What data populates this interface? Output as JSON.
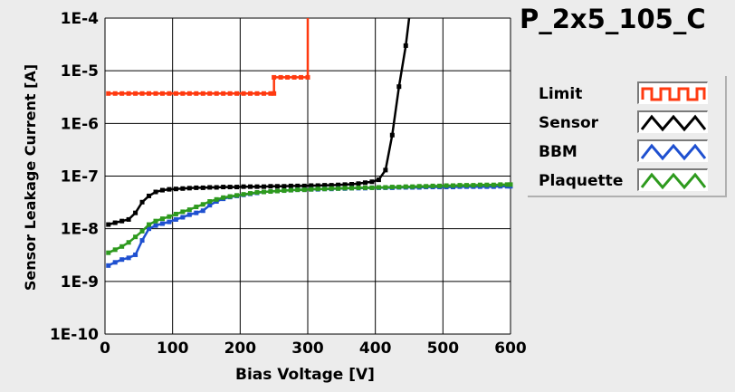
{
  "title": "P_2x5_105_C",
  "chart_data": {
    "type": "line",
    "xlabel": "Bias Voltage [V]",
    "ylabel": "Sensor Leakage Current [A]",
    "xlim": [
      0,
      600
    ],
    "ylim": [
      1e-10,
      0.0001
    ],
    "yscale": "log",
    "grid": true,
    "legend_position": "right",
    "x_ticks": [
      "0",
      "100",
      "200",
      "300",
      "400",
      "500",
      "600"
    ],
    "x_tick_values": [
      0,
      100,
      200,
      300,
      400,
      500,
      600
    ],
    "y_ticks": [
      "1E-4",
      "1E-5",
      "1E-6",
      "1E-7",
      "1E-8",
      "1E-9",
      "1E-10"
    ],
    "y_tick_values": [
      0.0001,
      1e-05,
      1e-06,
      1e-07,
      1e-08,
      1e-09,
      1e-10
    ],
    "series": [
      {
        "name": "Limit",
        "color": "#ff3a10",
        "points": [
          [
            5,
            3.7e-06
          ],
          [
            15,
            3.7e-06
          ],
          [
            25,
            3.7e-06
          ],
          [
            35,
            3.7e-06
          ],
          [
            45,
            3.7e-06
          ],
          [
            55,
            3.7e-06
          ],
          [
            65,
            3.7e-06
          ],
          [
            75,
            3.7e-06
          ],
          [
            85,
            3.7e-06
          ],
          [
            95,
            3.7e-06
          ],
          [
            105,
            3.7e-06
          ],
          [
            115,
            3.7e-06
          ],
          [
            125,
            3.7e-06
          ],
          [
            135,
            3.7e-06
          ],
          [
            145,
            3.7e-06
          ],
          [
            155,
            3.7e-06
          ],
          [
            165,
            3.7e-06
          ],
          [
            175,
            3.7e-06
          ],
          [
            185,
            3.7e-06
          ],
          [
            195,
            3.7e-06
          ],
          [
            205,
            3.7e-06
          ],
          [
            215,
            3.7e-06
          ],
          [
            225,
            3.7e-06
          ],
          [
            235,
            3.7e-06
          ],
          [
            245,
            3.7e-06
          ],
          [
            250,
            3.7e-06
          ],
          [
            250,
            7.5e-06
          ],
          [
            260,
            7.5e-06
          ],
          [
            270,
            7.5e-06
          ],
          [
            280,
            7.5e-06
          ],
          [
            290,
            7.5e-06
          ],
          [
            300,
            7.5e-06
          ],
          [
            300,
            0.0001
          ]
        ]
      },
      {
        "name": "Sensor",
        "color": "#000000",
        "points": [
          [
            5,
            1.2e-08
          ],
          [
            15,
            1.3e-08
          ],
          [
            25,
            1.4e-08
          ],
          [
            35,
            1.5e-08
          ],
          [
            45,
            2e-08
          ],
          [
            55,
            3.2e-08
          ],
          [
            65,
            4.2e-08
          ],
          [
            75,
            5e-08
          ],
          [
            85,
            5.4e-08
          ],
          [
            95,
            5.6e-08
          ],
          [
            105,
            5.7e-08
          ],
          [
            115,
            5.8e-08
          ],
          [
            125,
            5.9e-08
          ],
          [
            135,
            6e-08
          ],
          [
            145,
            6e-08
          ],
          [
            155,
            6.1e-08
          ],
          [
            165,
            6.1e-08
          ],
          [
            175,
            6.2e-08
          ],
          [
            185,
            6.2e-08
          ],
          [
            195,
            6.2e-08
          ],
          [
            205,
            6.3e-08
          ],
          [
            215,
            6.3e-08
          ],
          [
            225,
            6.3e-08
          ],
          [
            235,
            6.3e-08
          ],
          [
            245,
            6.4e-08
          ],
          [
            255,
            6.4e-08
          ],
          [
            265,
            6.4e-08
          ],
          [
            275,
            6.5e-08
          ],
          [
            285,
            6.5e-08
          ],
          [
            295,
            6.5e-08
          ],
          [
            305,
            6.6e-08
          ],
          [
            315,
            6.6e-08
          ],
          [
            325,
            6.7e-08
          ],
          [
            335,
            6.7e-08
          ],
          [
            345,
            6.8e-08
          ],
          [
            355,
            6.9e-08
          ],
          [
            365,
            7e-08
          ],
          [
            375,
            7.2e-08
          ],
          [
            385,
            7.5e-08
          ],
          [
            395,
            7.8e-08
          ],
          [
            405,
            8.5e-08
          ],
          [
            415,
            1.3e-07
          ],
          [
            425,
            6e-07
          ],
          [
            435,
            5e-06
          ],
          [
            445,
            3e-05
          ],
          [
            450,
            0.0001
          ]
        ]
      },
      {
        "name": "BBM",
        "color": "#1f50d0",
        "points": [
          [
            5,
            2e-09
          ],
          [
            15,
            2.3e-09
          ],
          [
            25,
            2.6e-09
          ],
          [
            35,
            2.8e-09
          ],
          [
            45,
            3.2e-09
          ],
          [
            55,
            6e-09
          ],
          [
            65,
            1e-08
          ],
          [
            75,
            1.15e-08
          ],
          [
            85,
            1.25e-08
          ],
          [
            95,
            1.35e-08
          ],
          [
            105,
            1.5e-08
          ],
          [
            115,
            1.65e-08
          ],
          [
            125,
            1.85e-08
          ],
          [
            135,
            2e-08
          ],
          [
            145,
            2.2e-08
          ],
          [
            155,
            2.8e-08
          ],
          [
            165,
            3.3e-08
          ],
          [
            175,
            3.7e-08
          ],
          [
            185,
            4e-08
          ],
          [
            195,
            4.2e-08
          ],
          [
            205,
            4.4e-08
          ],
          [
            215,
            4.6e-08
          ],
          [
            225,
            4.8e-08
          ],
          [
            235,
            5e-08
          ],
          [
            245,
            5.1e-08
          ],
          [
            255,
            5.2e-08
          ],
          [
            265,
            5.3e-08
          ],
          [
            275,
            5.4e-08
          ],
          [
            285,
            5.5e-08
          ],
          [
            295,
            5.5e-08
          ],
          [
            305,
            5.6e-08
          ],
          [
            315,
            5.6e-08
          ],
          [
            325,
            5.7e-08
          ],
          [
            335,
            5.7e-08
          ],
          [
            345,
            5.8e-08
          ],
          [
            355,
            5.8e-08
          ],
          [
            365,
            5.9e-08
          ],
          [
            375,
            5.9e-08
          ],
          [
            385,
            5.9e-08
          ],
          [
            395,
            6e-08
          ],
          [
            405,
            6e-08
          ],
          [
            415,
            6e-08
          ],
          [
            425,
            6e-08
          ],
          [
            435,
            6.1e-08
          ],
          [
            445,
            6.1e-08
          ],
          [
            455,
            6.1e-08
          ],
          [
            465,
            6.1e-08
          ],
          [
            475,
            6.2e-08
          ],
          [
            485,
            6.2e-08
          ],
          [
            495,
            6.2e-08
          ],
          [
            505,
            6.2e-08
          ],
          [
            515,
            6.2e-08
          ],
          [
            525,
            6.3e-08
          ],
          [
            535,
            6.3e-08
          ],
          [
            545,
            6.3e-08
          ],
          [
            555,
            6.3e-08
          ],
          [
            565,
            6.3e-08
          ],
          [
            575,
            6.3e-08
          ],
          [
            585,
            6.4e-08
          ],
          [
            595,
            6.4e-08
          ],
          [
            600,
            6.4e-08
          ]
        ]
      },
      {
        "name": "Plaquette",
        "color": "#2e9a1e",
        "points": [
          [
            5,
            3.5e-09
          ],
          [
            15,
            4e-09
          ],
          [
            25,
            4.6e-09
          ],
          [
            35,
            5.5e-09
          ],
          [
            45,
            7e-09
          ],
          [
            55,
            9e-09
          ],
          [
            65,
            1.2e-08
          ],
          [
            75,
            1.4e-08
          ],
          [
            85,
            1.55e-08
          ],
          [
            95,
            1.7e-08
          ],
          [
            105,
            1.9e-08
          ],
          [
            115,
            2.1e-08
          ],
          [
            125,
            2.3e-08
          ],
          [
            135,
            2.6e-08
          ],
          [
            145,
            2.9e-08
          ],
          [
            155,
            3.3e-08
          ],
          [
            165,
            3.6e-08
          ],
          [
            175,
            3.9e-08
          ],
          [
            185,
            4.1e-08
          ],
          [
            195,
            4.3e-08
          ],
          [
            205,
            4.5e-08
          ],
          [
            215,
            4.7e-08
          ],
          [
            225,
            4.9e-08
          ],
          [
            235,
            5e-08
          ],
          [
            245,
            5.1e-08
          ],
          [
            255,
            5.2e-08
          ],
          [
            265,
            5.3e-08
          ],
          [
            275,
            5.4e-08
          ],
          [
            285,
            5.5e-08
          ],
          [
            295,
            5.5e-08
          ],
          [
            305,
            5.6e-08
          ],
          [
            315,
            5.7e-08
          ],
          [
            325,
            5.7e-08
          ],
          [
            335,
            5.8e-08
          ],
          [
            345,
            5.8e-08
          ],
          [
            355,
            5.9e-08
          ],
          [
            365,
            5.9e-08
          ],
          [
            375,
            6e-08
          ],
          [
            385,
            6e-08
          ],
          [
            395,
            6e-08
          ],
          [
            405,
            6.1e-08
          ],
          [
            415,
            6.1e-08
          ],
          [
            425,
            6.2e-08
          ],
          [
            435,
            6.2e-08
          ],
          [
            445,
            6.3e-08
          ],
          [
            455,
            6.3e-08
          ],
          [
            465,
            6.4e-08
          ],
          [
            475,
            6.4e-08
          ],
          [
            485,
            6.5e-08
          ],
          [
            495,
            6.5e-08
          ],
          [
            505,
            6.6e-08
          ],
          [
            515,
            6.6e-08
          ],
          [
            525,
            6.7e-08
          ],
          [
            535,
            6.7e-08
          ],
          [
            545,
            6.7e-08
          ],
          [
            555,
            6.8e-08
          ],
          [
            565,
            6.8e-08
          ],
          [
            575,
            6.8e-08
          ],
          [
            585,
            6.9e-08
          ],
          [
            595,
            6.9e-08
          ],
          [
            600,
            6.9e-08
          ]
        ]
      }
    ]
  }
}
